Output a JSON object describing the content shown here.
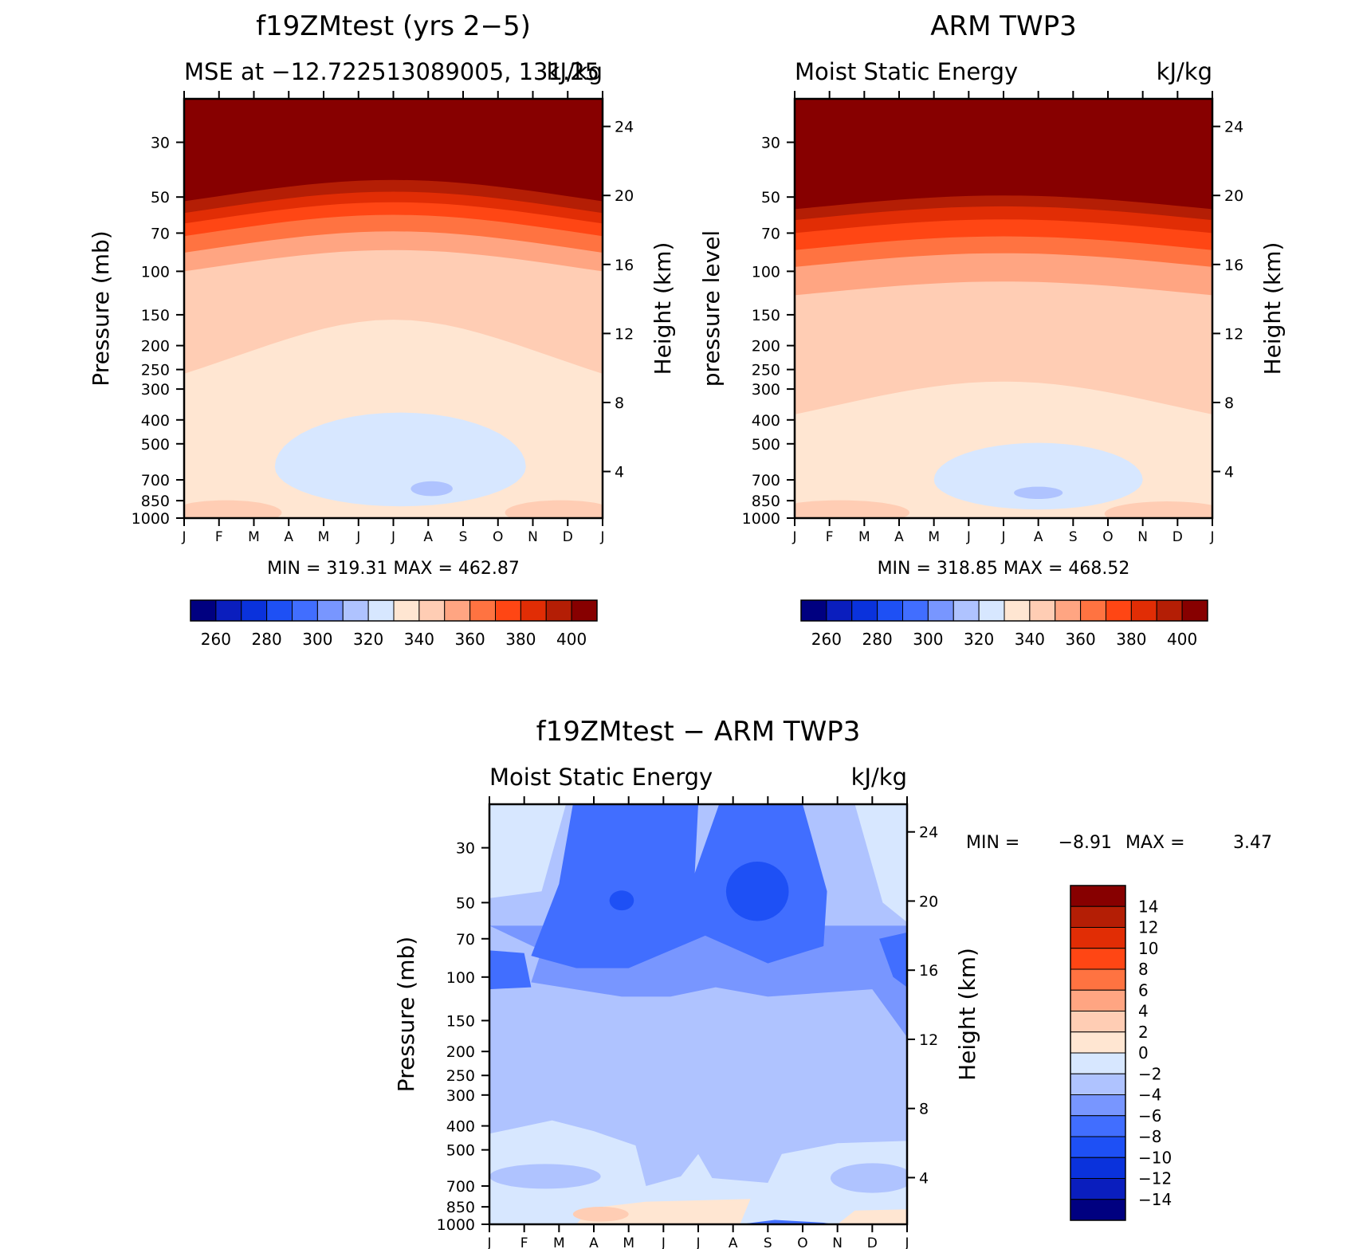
{
  "palette": [
    "#000080",
    "#0a1ebe",
    "#0a32dc",
    "#1e50f5",
    "#416eff",
    "#7896ff",
    "#afc3ff",
    "#d7e7ff",
    "#ffe6d2",
    "#ffcdb4",
    "#ffa582",
    "#ff7341",
    "#ff4614",
    "#e12d05",
    "#b41e05",
    "#870000"
  ],
  "chart_data": [
    {
      "type": "contour",
      "title": "f19ZMtest (yrs 2−5)",
      "subtitle_left": "MSE at −12.722513089005, 131.25",
      "subtitle_right": "kJ/kg",
      "ylabel": "Pressure (mb)",
      "ylabel_right": "Height (km)",
      "xlabel": "",
      "x_ticks": [
        "J",
        "F",
        "M",
        "A",
        "M",
        "J",
        "J",
        "A",
        "S",
        "O",
        "N",
        "D",
        "J"
      ],
      "y_ticks": [
        30,
        50,
        70,
        100,
        150,
        200,
        250,
        300,
        400,
        500,
        700,
        850,
        1000
      ],
      "y_ticks_right": [
        4,
        8,
        12,
        16,
        20,
        24
      ],
      "stats": "MIN = 319.31  MAX = 462.87",
      "colorbar_labels": [
        260,
        280,
        300,
        320,
        340,
        360,
        380,
        400
      ],
      "contour_levels": [
        250,
        260,
        270,
        280,
        290,
        300,
        310,
        320,
        330,
        340,
        350,
        360,
        370,
        380,
        390,
        400
      ],
      "band_boundaries_mb": {
        "330": 260,
        "340": 100,
        "350": 84,
        "360": 72,
        "370": 64,
        "380": 58,
        "390": 52
      },
      "regions": [
        "310-320 kJ/kg near 500-850 mb (Mar-Oct)",
        "<310 kJ/kg near 700 mb (Jul-Aug)",
        "330-340 kJ/kg near surface (Jan-Mar, Nov-Dec)"
      ]
    },
    {
      "type": "contour",
      "title": "ARM TWP3",
      "subtitle_left": "Moist Static Energy",
      "subtitle_right": "kJ/kg",
      "ylabel": "pressure level",
      "ylabel_right": "Height (km)",
      "xlabel": "",
      "x_ticks": [
        "J",
        "F",
        "M",
        "A",
        "M",
        "J",
        "J",
        "A",
        "S",
        "O",
        "N",
        "D",
        "J"
      ],
      "y_ticks": [
        30,
        50,
        70,
        100,
        150,
        200,
        250,
        300,
        400,
        500,
        700,
        850,
        1000
      ],
      "y_ticks_right": [
        4,
        8,
        12,
        16,
        20,
        24
      ],
      "stats": "MIN = 318.85  MAX = 468.52",
      "colorbar_labels": [
        260,
        280,
        300,
        320,
        340,
        360,
        380,
        400
      ],
      "contour_levels": [
        250,
        260,
        270,
        280,
        290,
        300,
        310,
        320,
        330,
        340,
        350,
        360,
        370,
        380,
        390,
        400
      ],
      "band_boundaries_mb": {
        "330": 380,
        "340": 125,
        "350": 96,
        "360": 82,
        "370": 70,
        "380": 62,
        "390": 56
      },
      "regions": [
        "310-320 kJ/kg near 500-1000 mb (Apr-Oct)",
        "<310 kJ/kg near 700 mb (Jul-Aug)",
        "330-340 kJ/kg near surface (Jan-Apr, Oct-Dec)"
      ]
    },
    {
      "type": "contour",
      "title": "f19ZMtest − ARM TWP3",
      "subtitle_left": "Moist Static Energy",
      "subtitle_right": "kJ/kg",
      "ylabel": "Pressure (mb)",
      "ylabel_right": "Height (km)",
      "xlabel": "",
      "x_ticks": [
        "J",
        "F",
        "M",
        "A",
        "M",
        "J",
        "J",
        "A",
        "S",
        "O",
        "N",
        "D",
        "J"
      ],
      "y_ticks": [
        30,
        50,
        70,
        100,
        150,
        200,
        250,
        300,
        400,
        500,
        700,
        850,
        1000
      ],
      "y_ticks_right": [
        4,
        8,
        12,
        16,
        20,
        24
      ],
      "stats_min_label": "MIN =",
      "stats_min": "−8.91",
      "stats_max_label": "MAX =",
      "stats_max": "3.47",
      "colorbar_labels": [
        "14",
        "12",
        "10",
        "8",
        "6",
        "4",
        "2",
        "0",
        "−2",
        "−4",
        "−6",
        "−8",
        "−10",
        "−12",
        "−14"
      ],
      "contour_levels": [
        -16,
        -14,
        -12,
        -10,
        -8,
        -6,
        -4,
        -2,
        0,
        2,
        4,
        6,
        8,
        10,
        12,
        14,
        16
      ],
      "regions": [
        "−6 to −8 kJ/kg at 30-100 mb (Mar-Sep)",
        "−4 to −2 kJ/kg at 150-400 mb",
        "−2 to 0 kJ/kg at 500-850 mb",
        "0 to 2 kJ/kg near surface",
        "−8 to −10 kJ/kg at 50 mb (May, Sep)"
      ]
    }
  ]
}
